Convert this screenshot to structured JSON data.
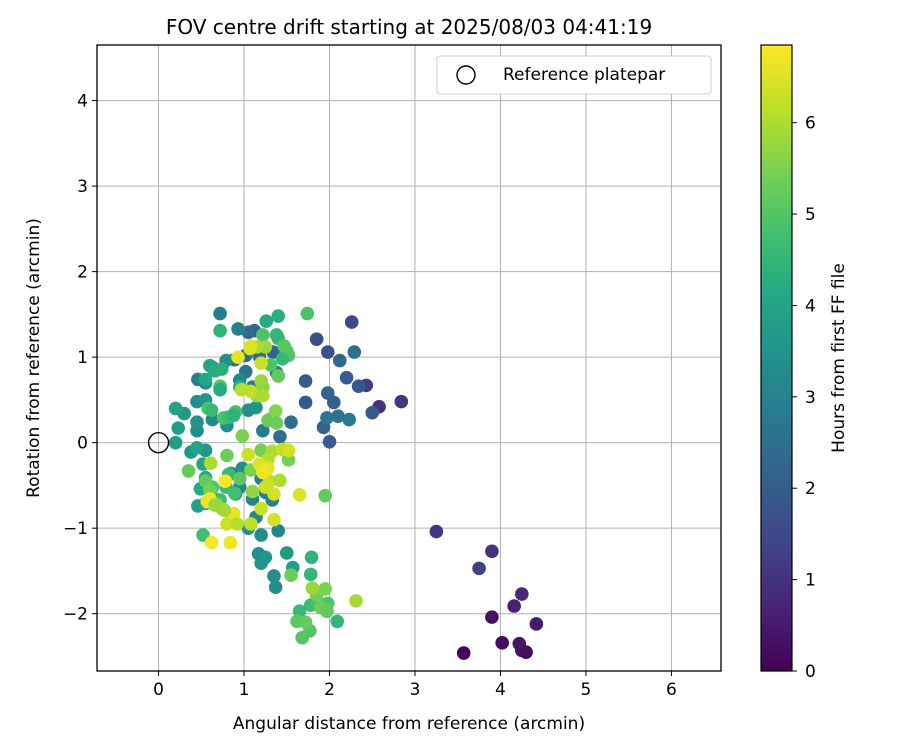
{
  "chart_data": {
    "type": "scatter",
    "title": "FOV centre drift starting at 2025/08/03 04:41:19",
    "xlabel": "Angular distance from reference (arcmin)",
    "ylabel": "Rotation from reference (arcmin)",
    "xlim": [
      -0.72,
      6.58
    ],
    "ylim": [
      -2.67,
      4.65
    ],
    "xticks": [
      0,
      1,
      2,
      3,
      4,
      5,
      6
    ],
    "yticks": [
      -2,
      -1,
      0,
      1,
      2,
      3,
      4
    ],
    "grid": true,
    "legend": {
      "position": "top-right",
      "entries": [
        "Reference platepar"
      ]
    },
    "reference_point": {
      "x": 0,
      "y": 0,
      "label": "Reference platepar"
    },
    "colorbar": {
      "label": "Hours from first FF file",
      "range": [
        0,
        6.85
      ],
      "ticks": [
        0,
        1,
        2,
        3,
        4,
        5,
        6
      ],
      "colormap": "viridis"
    },
    "points": [
      {
        "x": 3.57,
        "y": -2.46,
        "c": 0.1
      },
      {
        "x": 4.02,
        "y": -2.34,
        "c": 0.2
      },
      {
        "x": 4.3,
        "y": -2.45,
        "c": 0.2
      },
      {
        "x": 4.25,
        "y": -2.43,
        "c": 0.3
      },
      {
        "x": 3.9,
        "y": -2.04,
        "c": 0.3
      },
      {
        "x": 4.22,
        "y": -2.35,
        "c": 0.4
      },
      {
        "x": 4.42,
        "y": -2.12,
        "c": 0.5
      },
      {
        "x": 4.16,
        "y": -1.91,
        "c": 0.6
      },
      {
        "x": 4.25,
        "y": -1.77,
        "c": 0.8
      },
      {
        "x": 3.9,
        "y": -1.27,
        "c": 1.0
      },
      {
        "x": 3.25,
        "y": -1.04,
        "c": 1.1
      },
      {
        "x": 3.75,
        "y": -1.47,
        "c": 1.3
      },
      {
        "x": 2.58,
        "y": 0.42,
        "c": 1.0
      },
      {
        "x": 2.84,
        "y": 0.48,
        "c": 1.1
      },
      {
        "x": 2.43,
        "y": 0.67,
        "c": 1.2
      },
      {
        "x": 2.26,
        "y": 1.41,
        "c": 1.5
      },
      {
        "x": 1.85,
        "y": 1.21,
        "c": 1.6
      },
      {
        "x": 1.98,
        "y": 1.06,
        "c": 1.7
      },
      {
        "x": 2.5,
        "y": 0.35,
        "c": 1.9
      },
      {
        "x": 2.34,
        "y": 0.66,
        "c": 1.9
      },
      {
        "x": 2.2,
        "y": 0.76,
        "c": 2.0
      },
      {
        "x": 1.72,
        "y": 0.47,
        "c": 1.9
      },
      {
        "x": 1.72,
        "y": 0.72,
        "c": 2.0
      },
      {
        "x": 1.93,
        "y": 0.18,
        "c": 2.1
      },
      {
        "x": 2.0,
        "y": 0.01,
        "c": 2.0
      },
      {
        "x": 2.05,
        "y": 0.47,
        "c": 2.1
      },
      {
        "x": 1.98,
        "y": 0.58,
        "c": 2.2
      },
      {
        "x": 2.12,
        "y": 0.96,
        "c": 2.3
      },
      {
        "x": 2.29,
        "y": 1.06,
        "c": 2.5
      },
      {
        "x": 2.1,
        "y": 0.31,
        "c": 2.6
      },
      {
        "x": 1.97,
        "y": 0.29,
        "c": 2.7
      },
      {
        "x": 1.55,
        "y": 0.24,
        "c": 2.5
      },
      {
        "x": 2.23,
        "y": 0.27,
        "c": 2.8
      },
      {
        "x": 1.12,
        "y": 1.31,
        "c": 2.2
      },
      {
        "x": 1.05,
        "y": 1.29,
        "c": 2.4
      },
      {
        "x": 1.02,
        "y": 1.02,
        "c": 2.3
      },
      {
        "x": 1.34,
        "y": 1.06,
        "c": 2.2
      },
      {
        "x": 0.89,
        "y": 0.97,
        "c": 2.6
      },
      {
        "x": 1.18,
        "y": 1.01,
        "c": 2.4
      },
      {
        "x": 1.02,
        "y": 0.83,
        "c": 2.6
      },
      {
        "x": 1.42,
        "y": 0.07,
        "c": 2.5
      },
      {
        "x": 1.38,
        "y": 0.82,
        "c": 2.8
      },
      {
        "x": 1.1,
        "y": 0.65,
        "c": 2.7
      },
      {
        "x": 1.22,
        "y": 0.14,
        "c": 2.8
      },
      {
        "x": 0.72,
        "y": 1.51,
        "c": 2.9
      },
      {
        "x": 0.93,
        "y": 1.33,
        "c": 3.0
      },
      {
        "x": 0.46,
        "y": 0.74,
        "c": 3.0
      },
      {
        "x": 0.55,
        "y": 0.7,
        "c": 3.2
      },
      {
        "x": 0.63,
        "y": 0.88,
        "c": 3.1
      },
      {
        "x": 0.79,
        "y": 0.96,
        "c": 3.4
      },
      {
        "x": 0.95,
        "y": 0.73,
        "c": 3.2
      },
      {
        "x": 1.05,
        "y": 0.38,
        "c": 3.3
      },
      {
        "x": 1.14,
        "y": 0.41,
        "c": 3.5
      },
      {
        "x": 0.45,
        "y": 0.48,
        "c": 3.3
      },
      {
        "x": 0.55,
        "y": 0.5,
        "c": 3.5
      },
      {
        "x": 0.63,
        "y": 0.27,
        "c": 3.2
      },
      {
        "x": 0.8,
        "y": 0.2,
        "c": 3.4
      },
      {
        "x": 0.45,
        "y": 0.14,
        "c": 3.3
      },
      {
        "x": 0.38,
        "y": -0.11,
        "c": 3.6
      },
      {
        "x": 0.45,
        "y": 0.24,
        "c": 3.5
      },
      {
        "x": 0.55,
        "y": -0.09,
        "c": 3.6
      },
      {
        "x": 0.3,
        "y": 0.34,
        "c": 3.7
      },
      {
        "x": 0.23,
        "y": 0.17,
        "c": 3.8
      },
      {
        "x": 0.2,
        "y": 0.4,
        "c": 3.9
      },
      {
        "x": 0.2,
        "y": 0.0,
        "c": 3.8
      },
      {
        "x": 0.45,
        "y": -0.06,
        "c": 4.0
      },
      {
        "x": 0.52,
        "y": -0.25,
        "c": 4.0
      },
      {
        "x": 0.55,
        "y": -0.41,
        "c": 4.1
      },
      {
        "x": 0.6,
        "y": -0.52,
        "c": 4.2
      },
      {
        "x": 0.49,
        "y": -0.54,
        "c": 4.1
      },
      {
        "x": 0.55,
        "y": -0.71,
        "c": 4.0
      },
      {
        "x": 0.46,
        "y": -0.74,
        "c": 3.9
      },
      {
        "x": 0.95,
        "y": -0.52,
        "c": 3.1
      },
      {
        "x": 0.9,
        "y": -0.6,
        "c": 3.3
      },
      {
        "x": 0.98,
        "y": -0.3,
        "c": 3.4
      },
      {
        "x": 0.85,
        "y": -0.36,
        "c": 3.2
      },
      {
        "x": 1.2,
        "y": -0.42,
        "c": 3.0
      },
      {
        "x": 1.25,
        "y": -0.58,
        "c": 2.9
      },
      {
        "x": 1.33,
        "y": -0.67,
        "c": 3.0
      },
      {
        "x": 1.1,
        "y": -0.66,
        "c": 3.1
      },
      {
        "x": 1.14,
        "y": -0.87,
        "c": 3.2
      },
      {
        "x": 1.4,
        "y": -1.03,
        "c": 3.1
      },
      {
        "x": 1.2,
        "y": -1.08,
        "c": 3.3
      },
      {
        "x": 1.05,
        "y": -1.0,
        "c": 3.4
      },
      {
        "x": 1.17,
        "y": -1.3,
        "c": 3.3
      },
      {
        "x": 1.25,
        "y": -1.34,
        "c": 3.6
      },
      {
        "x": 1.2,
        "y": -1.41,
        "c": 3.5
      },
      {
        "x": 1.35,
        "y": -1.56,
        "c": 3.4
      },
      {
        "x": 1.37,
        "y": -1.69,
        "c": 3.4
      },
      {
        "x": 1.5,
        "y": -1.29,
        "c": 3.7
      },
      {
        "x": 1.57,
        "y": -1.46,
        "c": 3.8
      },
      {
        "x": 1.79,
        "y": -1.34,
        "c": 4.4
      },
      {
        "x": 1.78,
        "y": -1.54,
        "c": 4.5
      },
      {
        "x": 1.65,
        "y": -1.97,
        "c": 4.6
      },
      {
        "x": 1.78,
        "y": -1.9,
        "c": 4.7
      },
      {
        "x": 1.86,
        "y": -1.86,
        "c": 4.8
      },
      {
        "x": 1.97,
        "y": -1.97,
        "c": 4.7
      },
      {
        "x": 1.98,
        "y": -1.88,
        "c": 4.9
      },
      {
        "x": 2.09,
        "y": -2.09,
        "c": 4.5
      },
      {
        "x": 1.68,
        "y": -2.28,
        "c": 5.0
      },
      {
        "x": 1.77,
        "y": -2.2,
        "c": 5.0
      },
      {
        "x": 1.62,
        "y": -2.09,
        "c": 5.1
      },
      {
        "x": 1.72,
        "y": -2.1,
        "c": 5.2
      },
      {
        "x": 1.9,
        "y": -1.93,
        "c": 5.3
      },
      {
        "x": 1.85,
        "y": -1.78,
        "c": 5.4
      },
      {
        "x": 1.95,
        "y": -1.71,
        "c": 5.5
      },
      {
        "x": 2.31,
        "y": -1.85,
        "c": 5.9
      },
      {
        "x": 1.8,
        "y": -1.7,
        "c": 5.8
      },
      {
        "x": 1.97,
        "y": -1.96,
        "c": 5.2
      },
      {
        "x": 1.55,
        "y": -1.55,
        "c": 5.3
      },
      {
        "x": 0.82,
        "y": -0.37,
        "c": 4.6
      },
      {
        "x": 0.62,
        "y": -0.62,
        "c": 4.6
      },
      {
        "x": 0.72,
        "y": -0.67,
        "c": 4.7
      },
      {
        "x": 0.63,
        "y": -0.52,
        "c": 4.9
      },
      {
        "x": 0.79,
        "y": -0.52,
        "c": 4.6
      },
      {
        "x": 0.52,
        "y": -1.08,
        "c": 4.7
      },
      {
        "x": 0.89,
        "y": -0.59,
        "c": 4.8
      },
      {
        "x": 0.35,
        "y": -0.33,
        "c": 5.2
      },
      {
        "x": 0.55,
        "y": -0.45,
        "c": 5.2
      },
      {
        "x": 0.6,
        "y": -0.56,
        "c": 5.4
      },
      {
        "x": 0.68,
        "y": -0.72,
        "c": 5.5
      },
      {
        "x": 0.8,
        "y": -0.15,
        "c": 5.3
      },
      {
        "x": 0.95,
        "y": -0.42,
        "c": 5.1
      },
      {
        "x": 0.86,
        "y": -0.84,
        "c": 5.6
      },
      {
        "x": 0.75,
        "y": -0.78,
        "c": 5.8
      },
      {
        "x": 1.1,
        "y": -0.57,
        "c": 5.7
      },
      {
        "x": 0.98,
        "y": 0.08,
        "c": 5.5
      },
      {
        "x": 1.2,
        "y": -0.09,
        "c": 5.4
      },
      {
        "x": 1.08,
        "y": -0.32,
        "c": 5.5
      },
      {
        "x": 1.3,
        "y": 0.27,
        "c": 5.1
      },
      {
        "x": 1.28,
        "y": 0.26,
        "c": 5.3
      },
      {
        "x": 1.37,
        "y": 0.37,
        "c": 5.6
      },
      {
        "x": 1.52,
        "y": -0.2,
        "c": 5.4
      },
      {
        "x": 1.95,
        "y": -0.62,
        "c": 5.2
      },
      {
        "x": 1.38,
        "y": 0.23,
        "c": 5.3
      },
      {
        "x": 1.22,
        "y": 0.65,
        "c": 5.6
      },
      {
        "x": 1.15,
        "y": 0.55,
        "c": 5.8
      },
      {
        "x": 0.98,
        "y": 0.63,
        "c": 5.9
      },
      {
        "x": 0.76,
        "y": 0.29,
        "c": 4.9
      },
      {
        "x": 0.9,
        "y": 0.36,
        "c": 4.8
      },
      {
        "x": 0.72,
        "y": 0.66,
        "c": 5.0
      },
      {
        "x": 0.82,
        "y": 0.3,
        "c": 4.7
      },
      {
        "x": 0.88,
        "y": 0.32,
        "c": 4.4
      },
      {
        "x": 0.58,
        "y": 0.4,
        "c": 4.9
      },
      {
        "x": 0.62,
        "y": 0.38,
        "c": 4.6
      },
      {
        "x": 0.72,
        "y": 0.62,
        "c": 4.2
      },
      {
        "x": 0.95,
        "y": 0.65,
        "c": 4.3
      },
      {
        "x": 0.6,
        "y": 0.9,
        "c": 4.0
      },
      {
        "x": 0.55,
        "y": 0.74,
        "c": 4.1
      },
      {
        "x": 0.66,
        "y": 0.84,
        "c": 4.2
      },
      {
        "x": 0.74,
        "y": 0.86,
        "c": 4.3
      },
      {
        "x": 0.72,
        "y": 1.31,
        "c": 4.4
      },
      {
        "x": 1.26,
        "y": 1.42,
        "c": 4.2
      },
      {
        "x": 1.4,
        "y": 1.48,
        "c": 4.3
      },
      {
        "x": 1.4,
        "y": 1.22,
        "c": 4.6
      },
      {
        "x": 1.5,
        "y": 1.07,
        "c": 4.8
      },
      {
        "x": 1.52,
        "y": 1.02,
        "c": 5.0
      },
      {
        "x": 1.47,
        "y": 1.13,
        "c": 5.1
      },
      {
        "x": 1.45,
        "y": 0.98,
        "c": 4.6
      },
      {
        "x": 1.31,
        "y": 0.91,
        "c": 4.9
      },
      {
        "x": 1.4,
        "y": 0.78,
        "c": 5.2
      },
      {
        "x": 1.38,
        "y": 1.26,
        "c": 4.5
      },
      {
        "x": 1.74,
        "y": 1.51,
        "c": 4.9
      },
      {
        "x": 1.22,
        "y": 1.26,
        "c": 4.9
      },
      {
        "x": 1.25,
        "y": 1.12,
        "c": 5.8
      },
      {
        "x": 1.15,
        "y": 1.12,
        "c": 6.0
      },
      {
        "x": 1.2,
        "y": 0.93,
        "c": 6.3
      },
      {
        "x": 1.08,
        "y": 0.6,
        "c": 6.2
      },
      {
        "x": 0.97,
        "y": 0.62,
        "c": 6.1
      },
      {
        "x": 1.22,
        "y": 0.55,
        "c": 6.0
      },
      {
        "x": 1.2,
        "y": 0.72,
        "c": 5.8
      },
      {
        "x": 0.93,
        "y": 1.0,
        "c": 6.6
      },
      {
        "x": 1.07,
        "y": 1.1,
        "c": 6.4
      },
      {
        "x": 1.08,
        "y": 1.13,
        "c": 6.5
      },
      {
        "x": 1.33,
        "y": -0.1,
        "c": 6.0
      },
      {
        "x": 1.45,
        "y": -0.08,
        "c": 6.2
      },
      {
        "x": 1.28,
        "y": -0.2,
        "c": 6.1
      },
      {
        "x": 1.52,
        "y": -0.09,
        "c": 6.4
      },
      {
        "x": 1.05,
        "y": -0.14,
        "c": 6.3
      },
      {
        "x": 1.18,
        "y": -0.25,
        "c": 6.5
      },
      {
        "x": 1.3,
        "y": -0.45,
        "c": 6.2
      },
      {
        "x": 1.42,
        "y": -0.44,
        "c": 6.0
      },
      {
        "x": 1.25,
        "y": -0.52,
        "c": 6.3
      },
      {
        "x": 1.28,
        "y": -0.3,
        "c": 6.6
      },
      {
        "x": 1.22,
        "y": -0.35,
        "c": 6.7
      },
      {
        "x": 1.35,
        "y": -0.6,
        "c": 6.4
      },
      {
        "x": 1.65,
        "y": -0.61,
        "c": 6.5
      },
      {
        "x": 1.2,
        "y": -0.77,
        "c": 6.3
      },
      {
        "x": 1.35,
        "y": -0.9,
        "c": 6.4
      },
      {
        "x": 1.08,
        "y": -0.95,
        "c": 6.2
      },
      {
        "x": 0.8,
        "y": -0.95,
        "c": 6.3
      },
      {
        "x": 0.88,
        "y": -0.83,
        "c": 6.6
      },
      {
        "x": 0.78,
        "y": -0.45,
        "c": 6.8
      },
      {
        "x": 0.6,
        "y": -0.66,
        "c": 6.8
      },
      {
        "x": 0.57,
        "y": -0.69,
        "c": 6.7
      },
      {
        "x": 0.62,
        "y": -1.17,
        "c": 6.8
      },
      {
        "x": 0.84,
        "y": -1.17,
        "c": 6.7
      },
      {
        "x": 0.92,
        "y": -0.95,
        "c": 6.1
      },
      {
        "x": 0.61,
        "y": -0.24,
        "c": 6.0
      },
      {
        "x": 0.77,
        "y": -0.79,
        "c": 5.9
      },
      {
        "x": 0.66,
        "y": -0.73,
        "c": 5.8
      }
    ]
  }
}
